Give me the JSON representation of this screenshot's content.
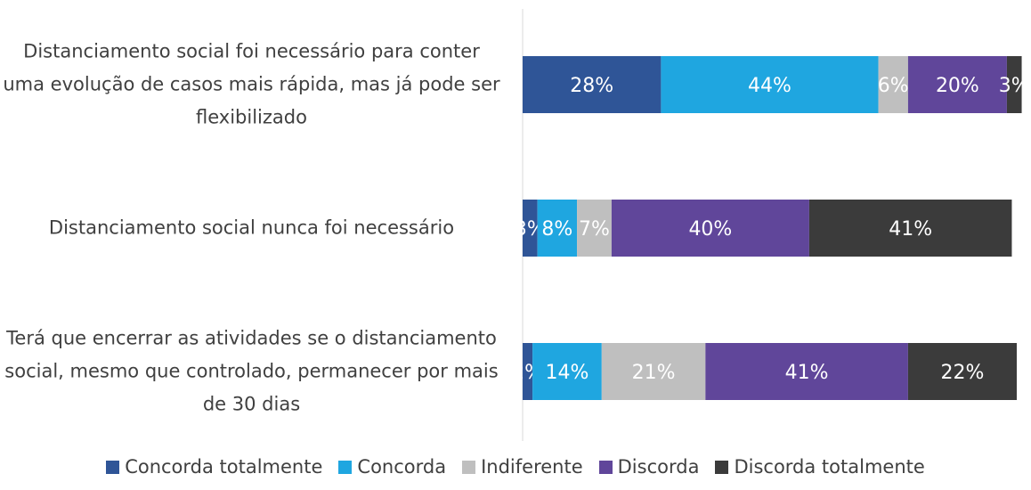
{
  "chart_data": {
    "type": "stacked-bar-horizontal",
    "categories": [
      "Distanciamento social foi necessário para conter uma evolução de casos mais rápida, mas já pode ser flexibilizado",
      "Distanciamento social nunca foi necessário",
      "Terá que encerrar as atividades se o distanciamento social, mesmo que controlado, permanecer por mais de 30 dias"
    ],
    "xlim": [
      0,
      100
    ],
    "series": [
      {
        "name": "Concorda totalmente",
        "color": "#2f5597",
        "values": [
          28,
          3,
          2
        ],
        "value_labels": [
          "28%",
          "3%",
          "2%"
        ]
      },
      {
        "name": "Concorda",
        "color": "#1fa6e0",
        "values": [
          44,
          8,
          14
        ],
        "value_labels": [
          "44%",
          "8%",
          "14%"
        ]
      },
      {
        "name": "Indiferente",
        "color": "#bfbfbf",
        "values": [
          6,
          7,
          21
        ],
        "value_labels": [
          "6%",
          "7%",
          "21%"
        ]
      },
      {
        "name": "Discorda",
        "color": "#60469a",
        "values": [
          20,
          40,
          41
        ],
        "value_labels": [
          "20%",
          "40%",
          "41%"
        ]
      },
      {
        "name": "Discorda totalmente",
        "color": "#3b3b3b",
        "values": [
          3,
          41,
          22
        ],
        "value_labels": [
          "3%",
          "41%",
          "22%"
        ]
      }
    ]
  }
}
